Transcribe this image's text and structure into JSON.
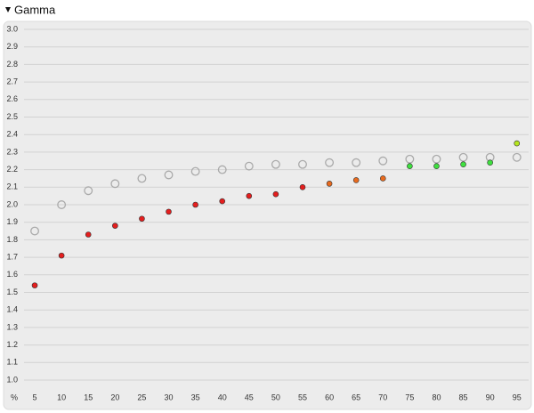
{
  "chart_data": {
    "type": "scatter",
    "title": "Gamma",
    "xlabel": "%",
    "x": [
      5,
      10,
      15,
      20,
      25,
      30,
      35,
      40,
      45,
      50,
      55,
      60,
      65,
      70,
      75,
      80,
      85,
      90,
      95
    ],
    "series": [
      {
        "color": "#aaaaaa",
        "marker": "open",
        "values": [
          1.85,
          2.0,
          2.08,
          2.12,
          2.15,
          2.17,
          2.19,
          2.2,
          2.22,
          2.23,
          2.23,
          2.24,
          2.24,
          2.25,
          2.26,
          2.26,
          2.27,
          2.27,
          2.27
        ]
      },
      {
        "marker": "filled",
        "colors": [
          "#e41e1e",
          "#e41e1e",
          "#e41e1e",
          "#e41e1e",
          "#e41e1e",
          "#e41e1e",
          "#e41e1e",
          "#e41e1e",
          "#e41e1e",
          "#e41e1e",
          "#e41e1e",
          "#e86a1e",
          "#e86a1e",
          "#e86a1e",
          "#3fe03f",
          "#3fe03f",
          "#3fe03f",
          "#3fe03f",
          "#b5e61d"
        ],
        "values": [
          1.54,
          1.71,
          1.83,
          1.88,
          1.92,
          1.96,
          2.0,
          2.02,
          2.05,
          2.06,
          2.1,
          2.12,
          2.14,
          2.15,
          2.22,
          2.22,
          2.23,
          2.24,
          2.35
        ]
      }
    ],
    "xlim": [
      3,
      97.2
    ],
    "ylim": [
      1,
      3
    ],
    "xticks": [
      5,
      10,
      15,
      20,
      25,
      30,
      35,
      40,
      45,
      50,
      55,
      60,
      65,
      70,
      75,
      80,
      85,
      90,
      95
    ],
    "yticks": [
      {
        "value": 1,
        "label": "1.0"
      },
      1.1,
      1.2,
      1.3,
      1.4,
      1.5,
      1.6,
      1.7,
      1.8,
      1.9,
      {
        "value": 2,
        "label": "2.0"
      },
      2.1,
      2.2,
      2.3,
      2.4,
      2.5,
      2.6,
      2.7,
      2.8,
      2.9,
      {
        "value": 3,
        "label": "3.0"
      }
    ],
    "grid": true
  }
}
